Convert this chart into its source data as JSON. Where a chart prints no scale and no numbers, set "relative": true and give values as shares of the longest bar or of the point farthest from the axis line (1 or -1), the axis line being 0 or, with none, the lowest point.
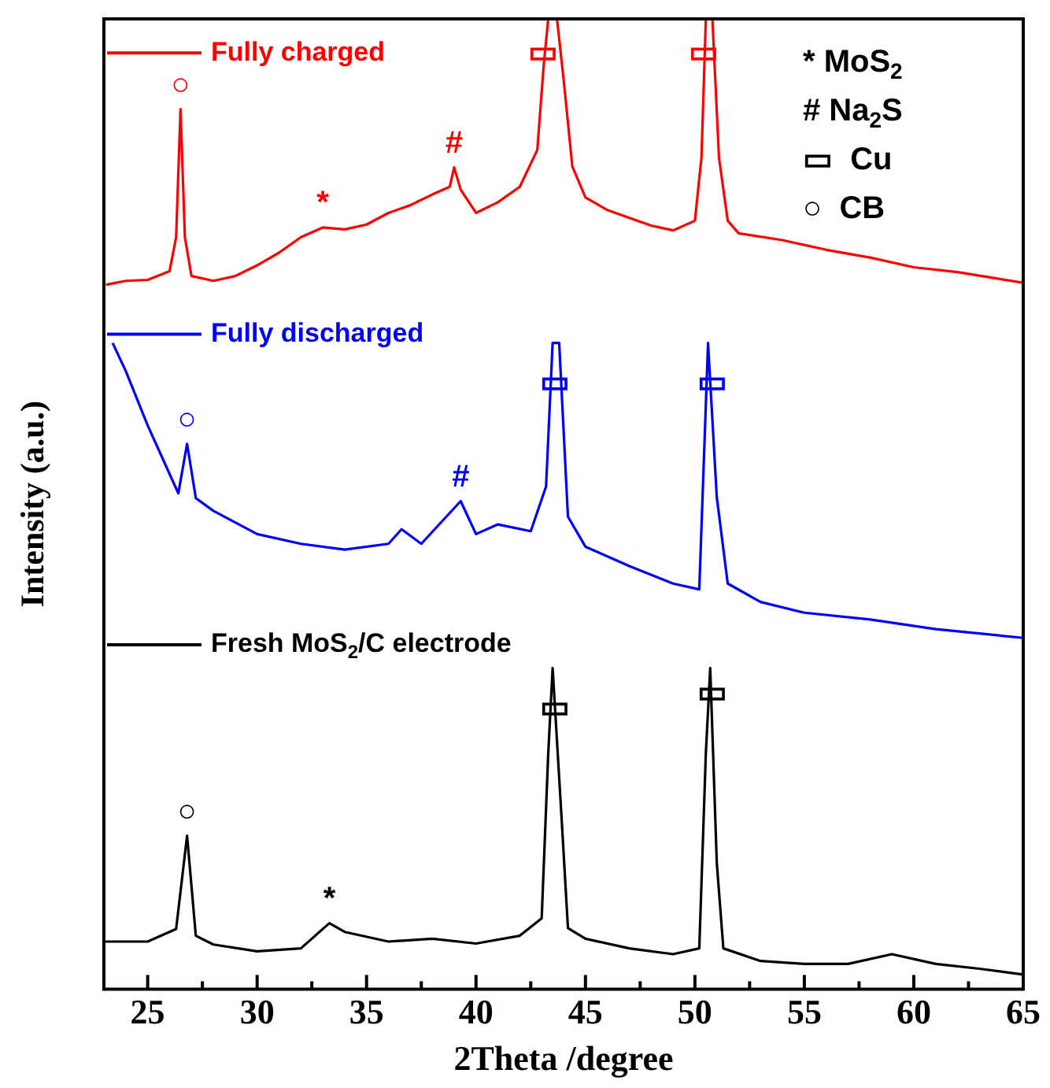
{
  "chart_data": {
    "type": "line",
    "relative": true,
    "xlabel": "2Theta /degree",
    "ylabel": "Intensity (a.u.)",
    "xlim": [
      23,
      65
    ],
    "xticks": [
      25,
      {
        "value": 27.5,
        "label": null
      },
      30,
      {
        "value": 32.5,
        "label": null
      },
      35,
      {
        "value": 37.5,
        "label": null
      },
      40,
      {
        "value": 42.5,
        "label": null
      },
      45,
      {
        "value": 47.5,
        "label": null
      },
      50,
      {
        "value": 52.5,
        "label": null
      },
      55,
      {
        "value": 57.5,
        "label": null
      },
      60,
      {
        "value": 62.5,
        "label": null
      },
      65
    ],
    "marker": "none",
    "line_style": "solid",
    "grid": false,
    "legend": "top left",
    "series": [
      {
        "name": "Fully charged",
        "color": "#ff0000",
        "x": [
          23.1,
          24,
          25,
          26,
          26.3,
          26.5,
          26.7,
          27,
          28,
          29,
          30,
          31,
          32,
          33,
          34,
          35,
          36,
          37,
          38,
          38.8,
          39,
          39.3,
          40,
          41,
          42,
          42.8,
          43.1,
          43.3,
          43.7,
          44,
          44.4,
          45,
          46,
          47,
          48,
          49,
          50,
          50.3,
          50.5,
          50.8,
          51.1,
          51.5,
          52,
          54,
          56,
          58,
          60,
          62,
          65
        ],
        "values": [
          0.726,
          0.73,
          0.731,
          0.74,
          0.775,
          0.907,
          0.775,
          0.735,
          0.73,
          0.735,
          0.746,
          0.759,
          0.775,
          0.785,
          0.783,
          0.788,
          0.8,
          0.808,
          0.819,
          0.827,
          0.847,
          0.824,
          0.8,
          0.811,
          0.827,
          0.865,
          0.954,
          1,
          1,
          0.938,
          0.848,
          0.816,
          0.803,
          0.795,
          0.787,
          0.782,
          0.792,
          0.857,
          1,
          1,
          0.857,
          0.792,
          0.779,
          0.772,
          0.762,
          0.754,
          0.744,
          0.739,
          0.728
        ]
      },
      {
        "name": "Fully discharged",
        "color": "#0000ff",
        "x": [
          23.4,
          24,
          25,
          26,
          26.4,
          26.8,
          27.2,
          28,
          30,
          32,
          34,
          36,
          36.6,
          37.5,
          39.3,
          40,
          41,
          42.5,
          43.2,
          43.5,
          43.8,
          44.2,
          45,
          47,
          49,
          50.2,
          50.6,
          51,
          51.5,
          53,
          55,
          58,
          61,
          65
        ],
        "values": [
          0.666,
          0.637,
          0.581,
          0.531,
          0.511,
          0.562,
          0.506,
          0.493,
          0.469,
          0.459,
          0.453,
          0.459,
          0.474,
          0.459,
          0.503,
          0.469,
          0.479,
          0.472,
          0.518,
          0.666,
          0.666,
          0.487,
          0.456,
          0.436,
          0.418,
          0.412,
          0.666,
          0.507,
          0.418,
          0.399,
          0.388,
          0.381,
          0.371,
          0.362
        ]
      },
      {
        "name": "Fresh MoS$_{2}$/C electrode",
        "color": "#000000",
        "x": [
          23,
          25,
          26.3,
          26.8,
          27.2,
          28,
          30,
          32,
          33.3,
          34,
          36,
          38,
          40,
          42,
          43,
          43.3,
          43.5,
          43.9,
          44.2,
          45,
          47,
          49,
          50.2,
          50.5,
          50.7,
          51,
          51.3,
          53,
          55,
          57,
          59,
          61,
          63,
          65
        ],
        "values": [
          0.049,
          0.049,
          0.062,
          0.158,
          0.055,
          0.046,
          0.039,
          0.042,
          0.068,
          0.059,
          0.049,
          0.052,
          0.047,
          0.055,
          0.073,
          0.243,
          0.331,
          0.18,
          0.063,
          0.052,
          0.042,
          0.036,
          0.042,
          0.243,
          0.331,
          0.13,
          0.042,
          0.029,
          0.026,
          0.026,
          0.036,
          0.026,
          0.021,
          0.015
        ]
      }
    ],
    "annotations": [
      {
        "text": "○",
        "x": 26.5,
        "y": 0.907
      },
      {
        "text": "*",
        "x": 33,
        "y": 0.785
      },
      {
        "text": "#",
        "x": 39.0,
        "y": 0.847
      },
      {
        "text": "▭",
        "x": 43.05,
        "y": 0.94
      },
      {
        "text": "▭",
        "x": 50.4,
        "y": 0.94
      },
      {
        "text": "○",
        "x": 26.8,
        "y": 0.562
      },
      {
        "text": "#",
        "x": 39.3,
        "y": 0.503
      },
      {
        "text": "▭",
        "x": 43.6,
        "y": 0.6
      },
      {
        "text": "▭",
        "x": 50.8,
        "y": 0.6
      },
      {
        "text": "○",
        "x": 26.8,
        "y": 0.158
      },
      {
        "text": "*",
        "x": 33.3,
        "y": 0.068
      },
      {
        "text": "▭",
        "x": 43.6,
        "y": 0.265
      },
      {
        "text": "▭",
        "x": 50.8,
        "y": 0.28
      },
      "* MoS$_{2}$",
      "# Na$_{2}$S",
      "▭  Cu",
      "○  CB"
    ]
  }
}
